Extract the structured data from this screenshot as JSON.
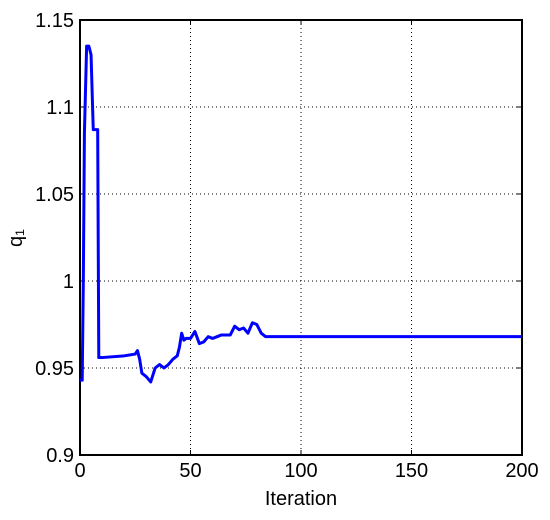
{
  "chart_data": {
    "type": "line",
    "xlabel": "Iteration",
    "ylabel": "q₁",
    "x": [
      0,
      1,
      1.5,
      2,
      3,
      4,
      5,
      6,
      8,
      8.5,
      10,
      20,
      25,
      26,
      27,
      28,
      30,
      32,
      34,
      36,
      38,
      40,
      42,
      44,
      45,
      46,
      47,
      48,
      50,
      52,
      54,
      56,
      58,
      60,
      64,
      68,
      70,
      72,
      74,
      76,
      78,
      80,
      82,
      84,
      200
    ],
    "series": [
      {
        "name": "q1",
        "color": "#0000ff",
        "values": [
          0.943,
          0.943,
          1.0,
          1.085,
          1.135,
          1.135,
          1.13,
          1.087,
          1.087,
          0.956,
          0.956,
          0.957,
          0.958,
          0.96,
          0.955,
          0.947,
          0.945,
          0.942,
          0.95,
          0.952,
          0.95,
          0.952,
          0.955,
          0.957,
          0.962,
          0.97,
          0.966,
          0.967,
          0.967,
          0.971,
          0.964,
          0.965,
          0.968,
          0.967,
          0.969,
          0.969,
          0.974,
          0.972,
          0.973,
          0.97,
          0.976,
          0.975,
          0.97,
          0.968,
          0.968
        ]
      }
    ],
    "xlim": [
      0,
      200
    ],
    "xticks": [
      0,
      50,
      100,
      150,
      200
    ],
    "ylim": [
      0.9,
      1.15
    ],
    "yticks": [
      0.9,
      0.95,
      1,
      1.05,
      1.1,
      1.15
    ],
    "grid": true
  }
}
